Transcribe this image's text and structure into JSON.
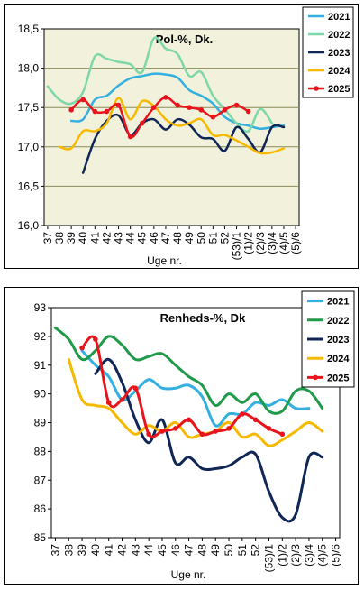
{
  "chart_data": [
    {
      "type": "line",
      "title": "Pol-%, Dk.",
      "xlabel": "Uge nr.",
      "ylabel": "",
      "ylim": [
        16.0,
        18.5
      ],
      "yticks": [
        "16,0",
        "16,5",
        "17,0",
        "17,5",
        "18,0",
        "18,5"
      ],
      "categories": [
        "37",
        "38",
        "39",
        "40",
        "41",
        "42",
        "43",
        "44",
        "45",
        "46",
        "47",
        "48",
        "49",
        "50",
        "51",
        "52",
        "(53)/1",
        "(1)/2",
        "(2)/3",
        "(3)/4",
        "(4)/5",
        "(5)/6"
      ],
      "grid": "horizontal",
      "plot_background": "#f2f2dc",
      "legend_position": "top-right",
      "series": [
        {
          "name": "2021",
          "color": "#33b0e0",
          "x": [
            39,
            40,
            41,
            42,
            43,
            44,
            45,
            46,
            47,
            48,
            49,
            50,
            51,
            52,
            53,
            54,
            55,
            56,
            57
          ],
          "values": [
            17.33,
            17.35,
            17.6,
            17.65,
            17.78,
            17.87,
            17.9,
            17.93,
            17.92,
            17.88,
            17.72,
            17.65,
            17.55,
            17.38,
            17.3,
            17.27,
            17.23,
            17.25,
            17.27
          ]
        },
        {
          "name": "2022",
          "color": "#7fd6a8",
          "x": [
            37,
            38,
            39,
            40,
            41,
            42,
            43,
            44,
            45,
            46,
            47,
            48,
            49,
            50,
            51,
            52,
            53,
            54,
            55,
            56
          ],
          "values": [
            17.77,
            17.6,
            17.55,
            17.7,
            18.15,
            18.12,
            18.08,
            18.05,
            17.95,
            18.38,
            18.25,
            18.18,
            17.9,
            17.95,
            17.65,
            17.48,
            17.3,
            17.2,
            17.48,
            17.3
          ]
        },
        {
          "name": "2023",
          "color": "#0f2656",
          "x": [
            40,
            41,
            42,
            43,
            44,
            45,
            46,
            47,
            48,
            49,
            50,
            51,
            52,
            53,
            54,
            55,
            56,
            57
          ],
          "values": [
            16.67,
            17.1,
            17.33,
            17.4,
            17.15,
            17.3,
            17.35,
            17.22,
            17.35,
            17.28,
            17.12,
            17.1,
            16.95,
            17.25,
            17.1,
            16.93,
            17.25,
            17.25
          ]
        },
        {
          "name": "2024",
          "color": "#f7b900",
          "x": [
            38,
            39,
            40,
            41,
            42,
            43,
            44,
            45,
            46,
            47,
            48,
            49,
            50,
            51,
            52,
            53,
            54,
            55,
            56,
            57
          ],
          "values": [
            17.0,
            16.98,
            17.2,
            17.2,
            17.3,
            17.62,
            17.35,
            17.58,
            17.52,
            17.35,
            17.27,
            17.3,
            17.35,
            17.15,
            17.15,
            17.08,
            17.0,
            16.92,
            16.93,
            16.98
          ]
        },
        {
          "name": "2025",
          "color": "#e8141c",
          "x": [
            39,
            40,
            41,
            42,
            43,
            44,
            45,
            46,
            47,
            48,
            49,
            50,
            51,
            52,
            53,
            54
          ],
          "values": [
            17.47,
            17.6,
            17.45,
            17.45,
            17.53,
            17.13,
            17.3,
            17.5,
            17.63,
            17.53,
            17.5,
            17.47,
            17.38,
            17.47,
            17.53,
            17.45
          ]
        }
      ]
    },
    {
      "type": "line",
      "title": "Renheds-%, Dk",
      "xlabel": "Uge nr.",
      "ylabel": "",
      "ylim": [
        85,
        93
      ],
      "yticks": [
        "85",
        "86",
        "87",
        "88",
        "89",
        "90",
        "91",
        "92",
        "93"
      ],
      "categories": [
        "37",
        "38",
        "39",
        "40",
        "41",
        "42",
        "43",
        "44",
        "45",
        "46",
        "47",
        "48",
        "49",
        "50",
        "51",
        "52",
        "(53)/1",
        "(1)/2",
        "(2)/3",
        "(3)/4",
        "(4)/5",
        "(5)/6"
      ],
      "grid": "none",
      "plot_background": "#ffffff",
      "legend_position": "top-right",
      "series": [
        {
          "name": "2021",
          "color": "#33b0e0",
          "x": [
            39,
            40,
            41,
            42,
            43,
            44,
            45,
            46,
            47,
            48,
            49,
            50,
            51,
            52,
            53,
            54,
            55,
            56
          ],
          "values": [
            91.5,
            91.0,
            90.6,
            89.8,
            90.1,
            90.5,
            90.2,
            90.2,
            90.3,
            89.9,
            88.9,
            89.3,
            89.3,
            89.7,
            89.6,
            89.8,
            89.5,
            89.5
          ]
        },
        {
          "name": "2022",
          "color": "#1f9a48",
          "x": [
            37,
            38,
            39,
            40,
            41,
            42,
            43,
            44,
            45,
            46,
            47,
            48,
            49,
            50,
            51,
            52,
            53,
            54,
            55,
            56,
            57
          ],
          "values": [
            92.3,
            91.9,
            91.2,
            91.5,
            92.0,
            91.7,
            91.2,
            91.3,
            91.4,
            91.0,
            90.6,
            90.3,
            89.6,
            90.0,
            89.7,
            90.0,
            89.4,
            89.4,
            90.1,
            90.1,
            89.5
          ]
        },
        {
          "name": "2023",
          "color": "#0f2656",
          "x": [
            40,
            41,
            42,
            43,
            44,
            45,
            46,
            47,
            48,
            49,
            50,
            51,
            52,
            53,
            54,
            55,
            56,
            57
          ],
          "values": [
            90.7,
            91.2,
            90.4,
            89.1,
            88.3,
            89.1,
            87.6,
            87.8,
            87.4,
            87.4,
            87.5,
            87.8,
            87.9,
            86.6,
            85.7,
            85.8,
            87.8,
            87.8
          ]
        },
        {
          "name": "2024",
          "color": "#f7b900",
          "x": [
            38,
            39,
            40,
            41,
            42,
            43,
            44,
            45,
            46,
            47,
            48,
            49,
            50,
            51,
            52,
            53,
            54,
            55,
            56,
            57
          ],
          "values": [
            91.2,
            89.8,
            89.6,
            89.5,
            89.0,
            88.6,
            88.9,
            88.7,
            89.0,
            88.5,
            88.6,
            88.7,
            89.0,
            88.5,
            88.6,
            88.2,
            88.4,
            88.7,
            89.0,
            88.7
          ]
        },
        {
          "name": "2025",
          "color": "#e8141c",
          "x": [
            39,
            40,
            41,
            42,
            43,
            44,
            45,
            46,
            47,
            48,
            49,
            50,
            51,
            52,
            53,
            54
          ],
          "values": [
            91.6,
            91.9,
            89.7,
            89.8,
            90.2,
            88.6,
            88.7,
            88.8,
            89.1,
            88.6,
            88.7,
            88.8,
            89.3,
            89.1,
            88.8,
            88.6
          ]
        }
      ]
    }
  ]
}
